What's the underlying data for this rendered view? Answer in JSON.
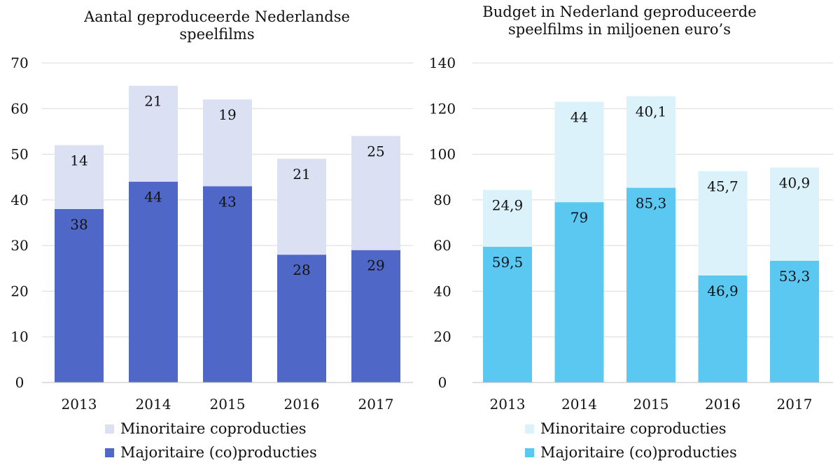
{
  "chart_data": [
    {
      "type": "bar",
      "stacked": true,
      "title": "Aantal geproduceerde Nederlandse speelfilms",
      "categories": [
        "2013",
        "2014",
        "2015",
        "2016",
        "2017"
      ],
      "ylim": [
        0,
        70
      ],
      "yticks": [
        0,
        10,
        20,
        30,
        40,
        50,
        60,
        70
      ],
      "grid": true,
      "legend_position": "bottom",
      "series": [
        {
          "name": "Majoritaire (co)producties",
          "values": [
            38,
            44,
            43,
            28,
            29
          ],
          "labels": [
            "38",
            "44",
            "43",
            "28",
            "29"
          ],
          "color": "#4f68c8"
        },
        {
          "name": "Minoritaire coproducties",
          "values": [
            14,
            21,
            19,
            21,
            25
          ],
          "labels": [
            "14",
            "21",
            "19",
            "21",
            "25"
          ],
          "color": "#dbe0f3"
        }
      ],
      "legend_order": [
        1,
        0
      ]
    },
    {
      "type": "bar",
      "stacked": true,
      "title": "Budget in Nederland geproduceerde speelfilms in miljoenen euro’s",
      "categories": [
        "2013",
        "2014",
        "2015",
        "2016",
        "2017"
      ],
      "ylim": [
        0,
        140
      ],
      "yticks": [
        0,
        20,
        40,
        60,
        80,
        100,
        120,
        140
      ],
      "grid": true,
      "legend_position": "bottom",
      "series": [
        {
          "name": "Majoritaire (co)producties",
          "values": [
            59.5,
            79,
            85.3,
            46.9,
            53.3
          ],
          "labels": [
            "59,5",
            "79",
            "85,3",
            "46,9",
            "53,3"
          ],
          "color": "#5bc8f2"
        },
        {
          "name": "Minoritaire coproducties",
          "values": [
            24.9,
            44,
            40.1,
            45.7,
            40.9
          ],
          "labels": [
            "24,9",
            "44",
            "40,1",
            "45,7",
            "40,9"
          ],
          "color": "#dcf2fb"
        }
      ],
      "legend_order": [
        1,
        0
      ]
    }
  ]
}
